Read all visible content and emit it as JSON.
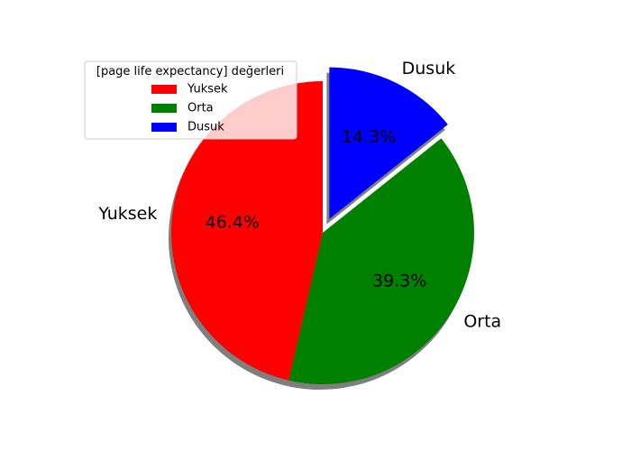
{
  "chart_data": {
    "type": "pie",
    "title": "",
    "categories": [
      "Yuksek",
      "Orta",
      "Dusuk"
    ],
    "values": [
      46.4,
      39.3,
      14.3
    ],
    "value_labels": [
      "46.4%",
      "39.3%",
      "14.3%"
    ],
    "colors": [
      "#ff0000",
      "#008000",
      "#0000ff"
    ],
    "exploded": [
      false,
      false,
      true
    ],
    "shadow": true,
    "start_angle_deg": 90,
    "direction": "counterclockwise",
    "legend": {
      "title": "[page life expectancy] değerleri",
      "placement": "upper-left",
      "entries": [
        "Yuksek",
        "Orta",
        "Dusuk"
      ]
    }
  }
}
